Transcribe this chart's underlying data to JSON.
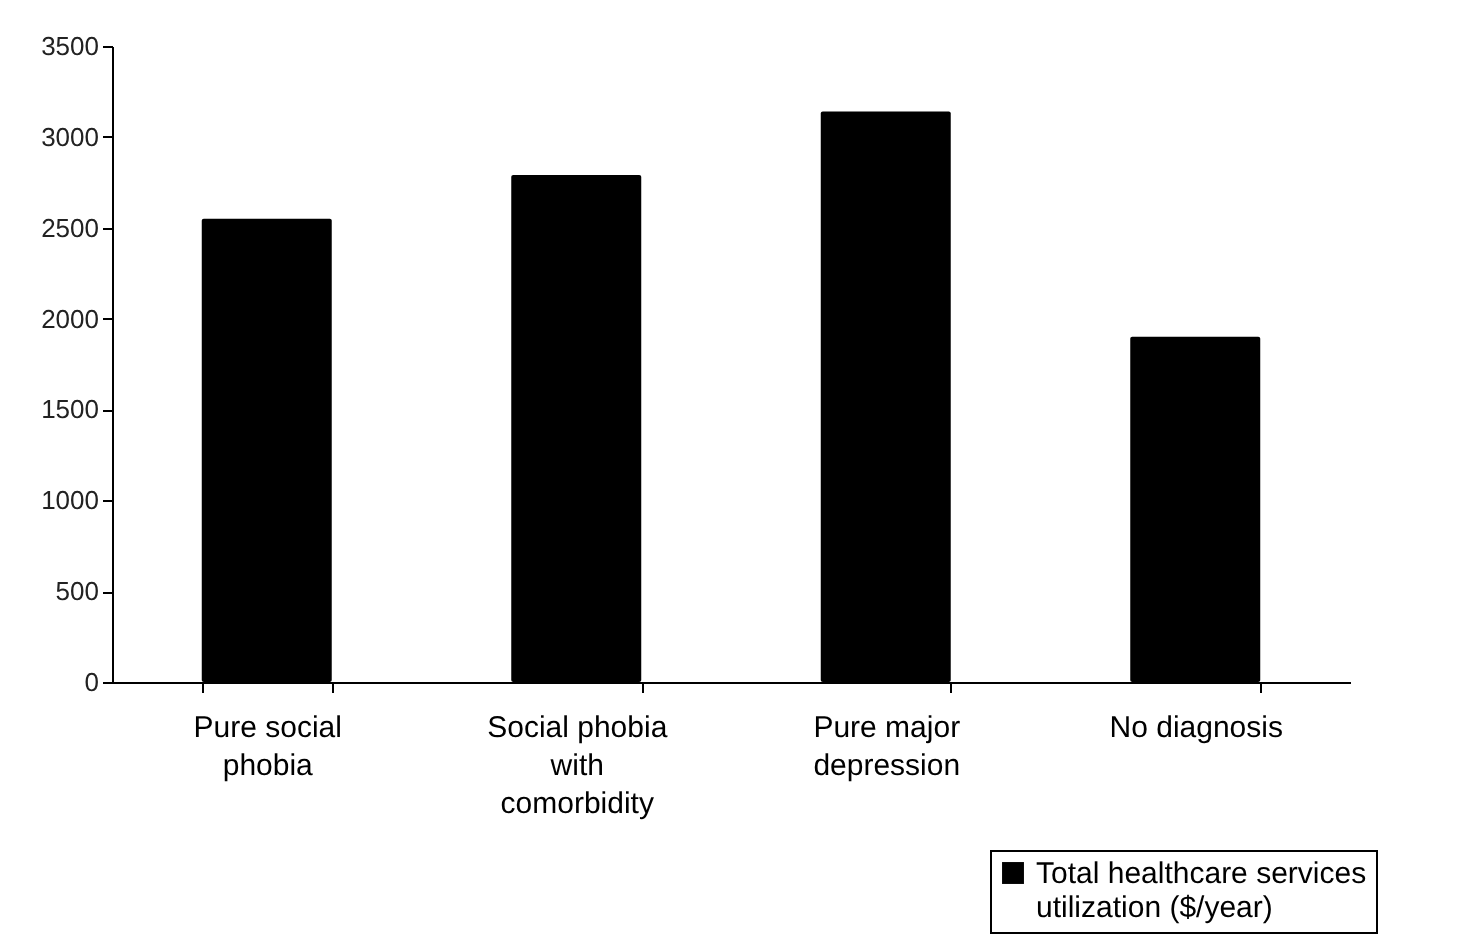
{
  "chart_data": {
    "type": "bar",
    "categories": [
      "Pure social phobia",
      "Social phobia with comorbidity",
      "Pure major depression",
      "No diagnosis"
    ],
    "series": [
      {
        "name": "Total healthcare services utilization ($/year)",
        "color": "#000000",
        "values": [
          2550,
          2790,
          3140,
          1900
        ]
      }
    ],
    "ylim": [
      0,
      3500
    ],
    "yticks": [
      0,
      500,
      1000,
      1500,
      2000,
      2500,
      3000,
      3500
    ],
    "grid": false,
    "legend": "bottom right"
  }
}
